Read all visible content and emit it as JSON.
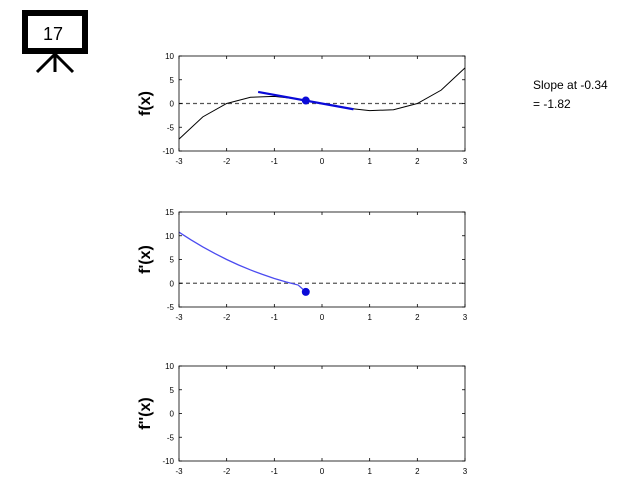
{
  "slide": {
    "number": "17"
  },
  "readout": {
    "line1": "Slope at -0.34",
    "line2": "= -1.82"
  },
  "colors": {
    "curve": "#000000",
    "tangent": "#0a0ad8",
    "derivative": "#4b4bf0",
    "marker": "#0a0ad8",
    "zero_line": "#555555"
  },
  "chart_data": [
    {
      "type": "line",
      "ylabel": "f(x)",
      "xlim": [
        -3,
        3
      ],
      "ylim": [
        -10,
        10
      ],
      "xticks": [
        -3,
        -2,
        -1,
        0,
        1,
        2,
        3
      ],
      "yticks": [
        -10,
        -5,
        0,
        5,
        10
      ],
      "x_tick_labels": [
        "-3",
        "-2",
        "-1",
        "0",
        "1",
        "2",
        "3"
      ],
      "y_tick_labels": [
        "-10",
        "-5",
        "0",
        "5",
        "10"
      ],
      "reference_line_y": 0,
      "curve": {
        "x": [
          -3,
          -2.5,
          -2,
          -1.5,
          -1,
          -0.5,
          0,
          0.5,
          1,
          1.5,
          2,
          2.5,
          3
        ],
        "y": [
          -7.5,
          -2.81,
          0,
          1.31,
          1.5,
          0.94,
          0,
          -0.94,
          -1.5,
          -1.31,
          0,
          2.81,
          7.5
        ]
      },
      "tangent": {
        "x": [
          -1.34,
          0.66
        ],
        "y": [
          2.43,
          -1.21
        ]
      },
      "marker": {
        "x": -0.34,
        "y": 0.62
      }
    },
    {
      "type": "line",
      "ylabel": "f'(x)",
      "xlim": [
        -3,
        3
      ],
      "ylim": [
        -5,
        15
      ],
      "xticks": [
        -3,
        -2,
        -1,
        0,
        1,
        2,
        3
      ],
      "yticks": [
        -5,
        0,
        5,
        10,
        15
      ],
      "x_tick_labels": [
        "-3",
        "-2",
        "-1",
        "0",
        "1",
        "2",
        "3"
      ],
      "y_tick_labels": [
        "-5",
        "0",
        "5",
        "10",
        "15"
      ],
      "reference_line_y": 0,
      "curve": {
        "x": [
          -3,
          -2.75,
          -2.5,
          -2.25,
          -2,
          -1.75,
          -1.5,
          -1.25,
          -1,
          -0.75,
          -0.5,
          -0.34
        ],
        "y": [
          10.75,
          9.14,
          7.64,
          6.27,
          5,
          3.84,
          2.8,
          1.86,
          1,
          0.27,
          -0.38,
          -1.82
        ]
      },
      "marker": {
        "x": -0.34,
        "y": -1.82
      }
    },
    {
      "type": "line",
      "ylabel": "f''(x)",
      "xlim": [
        -3,
        3
      ],
      "ylim": [
        -10,
        10
      ],
      "xticks": [
        -3,
        -2,
        -1,
        0,
        1,
        2,
        3
      ],
      "yticks": [
        -10,
        -5,
        0,
        5,
        10
      ],
      "x_tick_labels": [
        "-3",
        "-2",
        "-1",
        "0",
        "1",
        "2",
        "3"
      ],
      "y_tick_labels": [
        "-10",
        "-5",
        "0",
        "5",
        "10"
      ]
    }
  ]
}
